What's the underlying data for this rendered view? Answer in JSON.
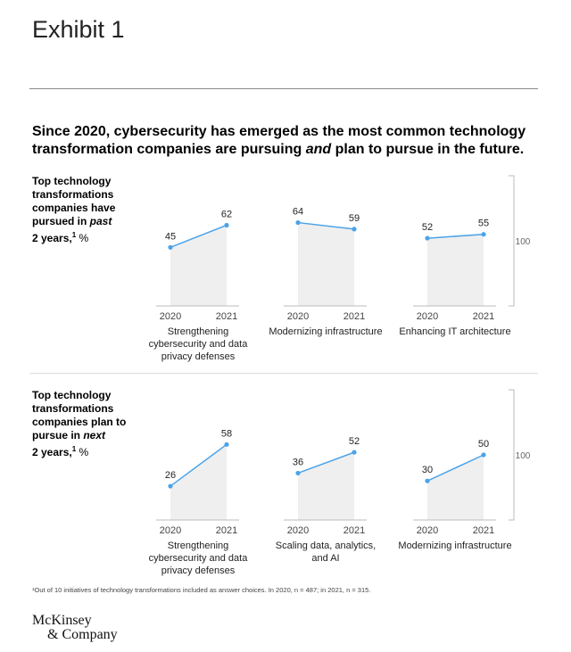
{
  "exhibit": "Exhibit 1",
  "title_parts": [
    "Since 2020, cybersecurity has emerged as the most common technology transformation companies are pursuing ",
    "and",
    " plan to pursue in the future."
  ],
  "footnote": "¹Out of 10 initiatives of technology transformations included as answer choices. In 2020, n = 487; in 2021, n = 315.",
  "logo": [
    "McKinsey",
    "& Company"
  ],
  "colors": {
    "line": "#4aa3e8",
    "area": "#efefef",
    "axis": "#bbbbbb"
  },
  "chart_data": [
    {
      "type": "area",
      "row_label": [
        "Top technology transformations companies have pursued in ",
        "past",
        " 2 years,",
        "1",
        " %"
      ],
      "x": [
        "2020",
        "2021"
      ],
      "ylim": [
        0,
        100
      ],
      "scale_label": "100",
      "series": [
        {
          "name": "Strengthening cybersecurity and data privacy defenses",
          "values": [
            45,
            62
          ]
        },
        {
          "name": "Modernizing infrastructure",
          "values": [
            64,
            59
          ]
        },
        {
          "name": "Enhancing IT architecture",
          "values": [
            52,
            55
          ]
        }
      ]
    },
    {
      "type": "area",
      "row_label": [
        "Top technology transformations companies plan to pursue in ",
        "next",
        " 2 years,",
        "1",
        " %"
      ],
      "x": [
        "2020",
        "2021"
      ],
      "ylim": [
        0,
        100
      ],
      "scale_label": "100",
      "series": [
        {
          "name": "Strengthening cybersecurity and data privacy defenses",
          "values": [
            26,
            58
          ]
        },
        {
          "name": "Scaling data, analytics, and AI",
          "values": [
            36,
            52
          ]
        },
        {
          "name": "Modernizing infrastructure",
          "values": [
            30,
            50
          ]
        }
      ]
    }
  ]
}
